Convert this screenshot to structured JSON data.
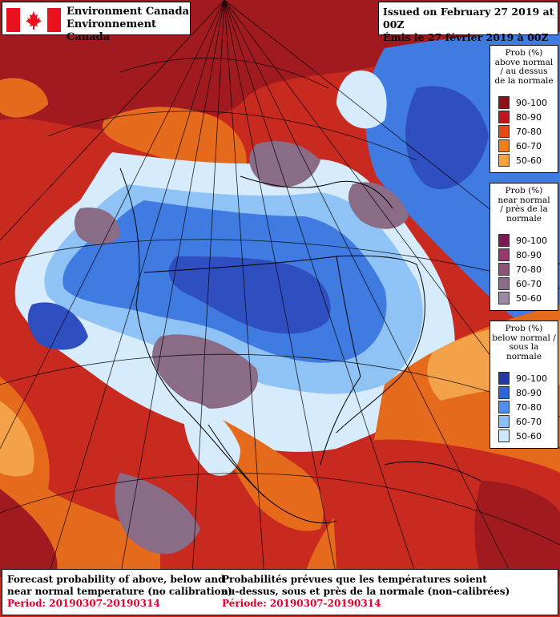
{
  "header": {
    "agency_en": "Environment Canada",
    "agency_fr": "Environnement Canada",
    "issued_en": "Issued on February 27 2019 at 00Z",
    "issued_fr": "Émis le 27 février 2019 à 00Z"
  },
  "legends": [
    {
      "id": "above",
      "title_lines": [
        "Prob (%)",
        "above normal",
        "/ au dessus",
        "de la normale"
      ],
      "items": [
        {
          "label": "90-100",
          "color": "#8f1116"
        },
        {
          "label": "80-90",
          "color": "#c0151b"
        },
        {
          "label": "70-80",
          "color": "#e04a15"
        },
        {
          "label": "60-70",
          "color": "#ef7f1a"
        },
        {
          "label": "50-60",
          "color": "#f5a13c"
        }
      ]
    },
    {
      "id": "near",
      "title_lines": [
        "Prob (%)",
        "near normal",
        "/ près de la",
        "normale"
      ],
      "items": [
        {
          "label": "90-100",
          "color": "#7a1a4e"
        },
        {
          "label": "80-90",
          "color": "#97386a"
        },
        {
          "label": "70-80",
          "color": "#8a5576"
        },
        {
          "label": "60-70",
          "color": "#8a6c87"
        },
        {
          "label": "50-60",
          "color": "#9a8aa3"
        }
      ]
    },
    {
      "id": "below",
      "title_lines": [
        "Prob (%)",
        "below normal /",
        "sous la normale"
      ],
      "items": [
        {
          "label": "90-100",
          "color": "#2438a4"
        },
        {
          "label": "80-90",
          "color": "#2f63d9"
        },
        {
          "label": "70-80",
          "color": "#4f8ff0"
        },
        {
          "label": "60-70",
          "color": "#8bc0f7"
        },
        {
          "label": "50-60",
          "color": "#cfe7fc"
        }
      ]
    }
  ],
  "footer": {
    "en_line1": "Forecast probability of above, below and",
    "en_line2": "near normal temperature (no calibration)",
    "en_period": "Period: 20190307-20190314",
    "fr_line1": "Probabilités prévues que les températures soient",
    "fr_line2": "au-dessus, sous et près de la normale (non-calibrées)",
    "fr_period": "Période: 20190307-20190314",
    "period_color": "#e0002a"
  },
  "colors": {
    "red_high": "#a01a1f",
    "red": "#c92a1f",
    "orange": "#e66a1c",
    "light_orange": "#f3a24a",
    "purple": "#8a6c87",
    "blue_dark": "#2f4fc0",
    "blue": "#3f7be0",
    "blue_light": "#8fc2f5",
    "blue_pale": "#d6ebfc"
  }
}
